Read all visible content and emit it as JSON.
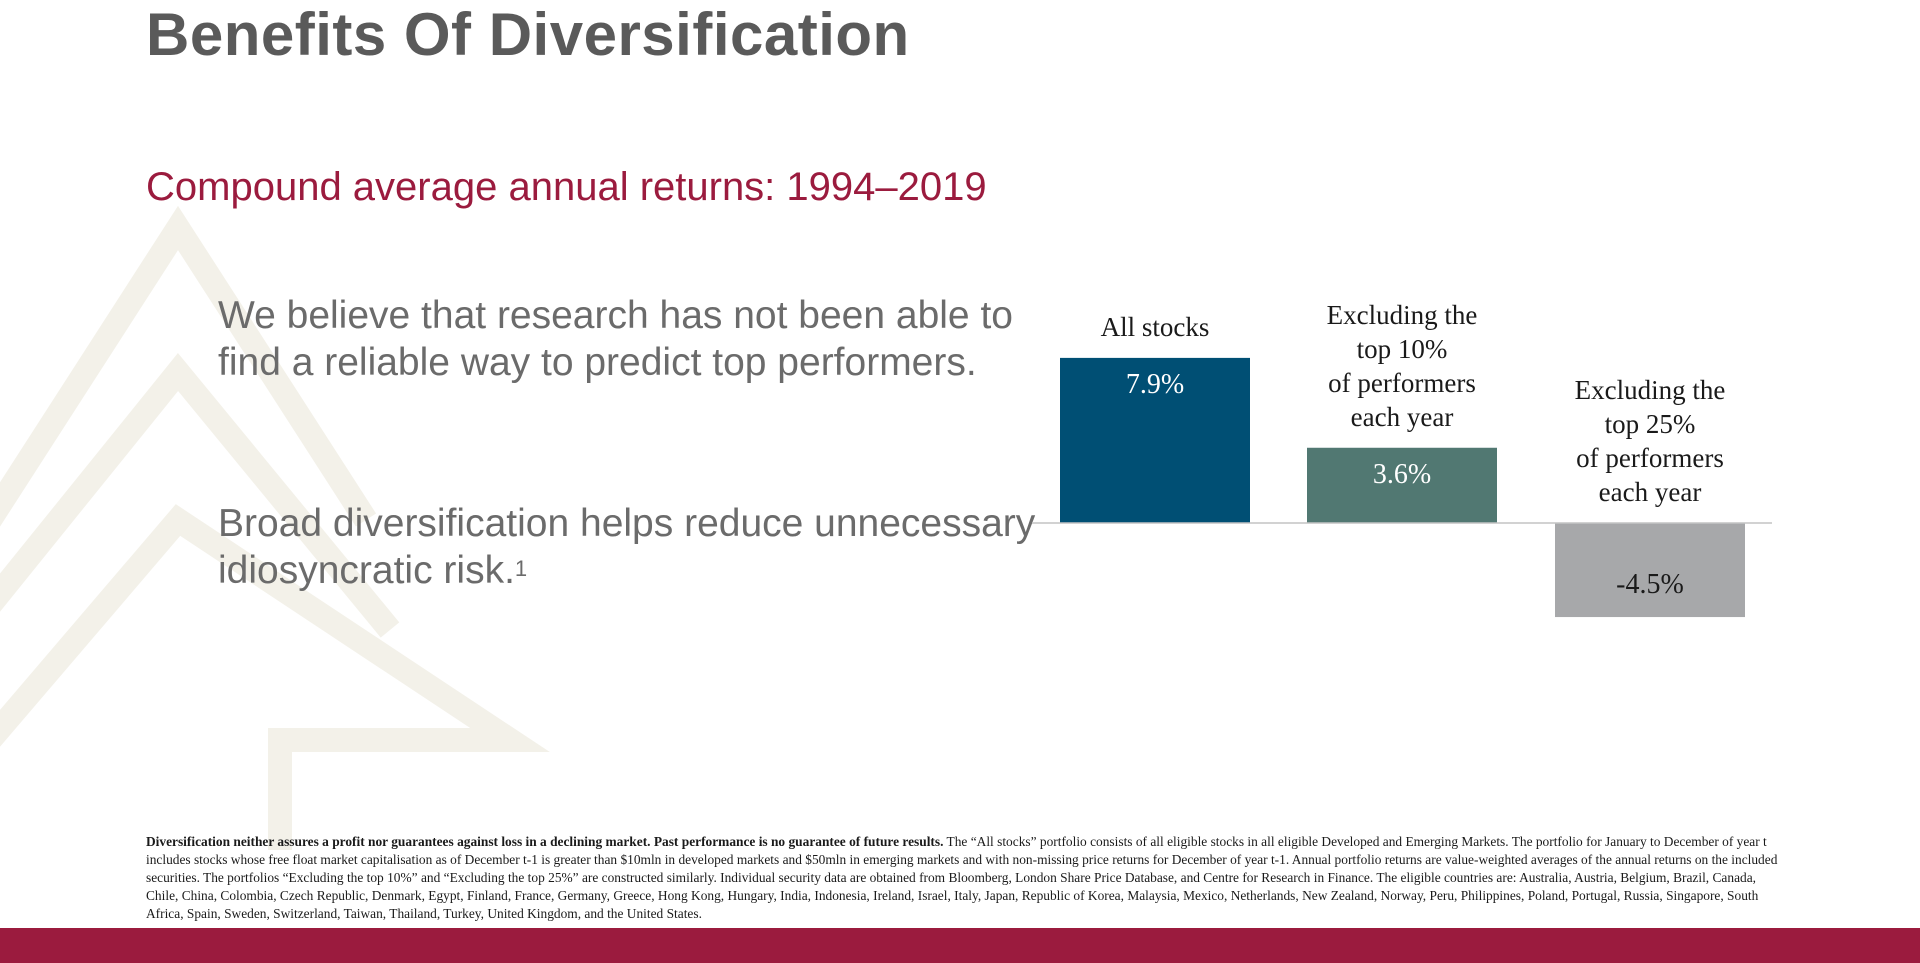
{
  "header": {
    "title": "Benefits Of Diversification"
  },
  "subtitle": "Compound average annual returns: 1994–2019",
  "body": {
    "para1": "We believe that research has not been able to find a reliable way to predict top performers.",
    "para2": "Broad diversification helps reduce unnecessary idiosyncratic risk.",
    "para2_footnote_marker": "1"
  },
  "colors": {
    "title": "#5a5a5a",
    "accent": "#9b1b3e",
    "bar_all_stocks": "#004f74",
    "bar_excl_top10": "#517872",
    "bar_excl_top25": "#a7a8aa",
    "tree_watermark": "#f3f1e9"
  },
  "chart_data": {
    "type": "bar",
    "title": "",
    "xlabel": "",
    "ylabel": "",
    "categories": [
      [
        "All stocks"
      ],
      [
        "Excluding the",
        "top 10%",
        "of performers",
        "each year"
      ],
      [
        "Excluding the",
        "top 25%",
        "of performers",
        "each year"
      ]
    ],
    "values": [
      7.9,
      3.6,
      -4.5
    ],
    "value_labels": [
      "7.9%",
      "3.6%",
      "-4.5%"
    ],
    "unit": "%",
    "grid": false,
    "legend": "none",
    "colors": [
      "#004f74",
      "#517872",
      "#a7a8aa"
    ]
  },
  "footnote": {
    "bold": "Diversification neither assures a profit nor guarantees against loss in a declining market. Past performance is no guarantee of future results.",
    "text": " The “All stocks” portfolio consists of all eligible stocks in all eligible Developed and Emerging Markets. The portfolio for January to December of year t includes stocks whose free float market capitalisation as of December t-1 is greater than $10mln in developed markets and $50mln in emerging markets and with non-missing price returns for December of year t-1. Annual portfolio returns are value-weighted averages of the annual returns on the included securities. The portfolios “Excluding the top 10%” and “Excluding the top 25%” are constructed similarly. Individual security data are obtained from Bloomberg, London Share Price Database, and Centre for Research in Finance. The eligible countries are: Australia, Austria, Belgium, Brazil, Canada, Chile, China, Colombia, Czech Republic, Denmark, Egypt, Finland, France, Germany, Greece, Hong Kong, Hungary, India, Indonesia, Ireland, Israel, Italy, Japan, Republic of Korea, Malaysia, Mexico, Netherlands, New Zealand, Norway, Peru, Philippines, Poland, Portugal, Russia, Singapore, South Africa, Spain, Sweden, Switzerland, Taiwan, Thailand, Turkey, United Kingdom, and the United States."
  }
}
